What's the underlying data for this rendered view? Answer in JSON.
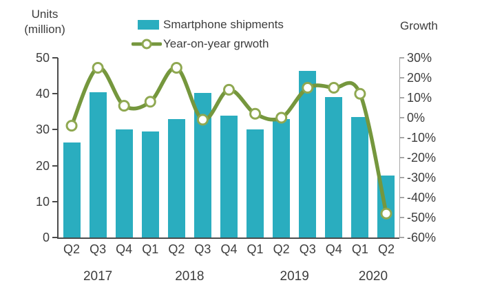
{
  "chart_data": {
    "type": "bar",
    "combo": "bar+line",
    "title": "",
    "categories": [
      "Q2",
      "Q3",
      "Q4",
      "Q1",
      "Q2",
      "Q3",
      "Q4",
      "Q1",
      "Q2",
      "Q3",
      "Q4",
      "Q1",
      "Q2"
    ],
    "year_groups": [
      {
        "label": "2017",
        "from": 0,
        "to": 2
      },
      {
        "label": "2018",
        "from": 3,
        "to": 6
      },
      {
        "label": "2019",
        "from": 7,
        "to": 10
      },
      {
        "label": "2020",
        "from": 11,
        "to": 12
      }
    ],
    "series": [
      {
        "name": "Smartphone shipments",
        "kind": "bar",
        "axis": "left",
        "values": [
          26.5,
          40.5,
          30,
          29.5,
          33,
          40.3,
          34,
          30,
          33,
          46.3,
          39,
          33.5,
          17.3
        ]
      },
      {
        "name": "Year-on-year grwoth",
        "kind": "line",
        "axis": "right",
        "unit": "%",
        "values": [
          -4,
          25,
          6,
          8,
          25,
          -1,
          14,
          2,
          0,
          15,
          15,
          12,
          -48
        ]
      }
    ],
    "left_axis": {
      "title_lines": [
        "Units",
        "(million)"
      ],
      "min": 0,
      "max": 50,
      "ticks": [
        0,
        10,
        20,
        30,
        40,
        50
      ]
    },
    "right_axis": {
      "title": "Growth",
      "min": -60,
      "max": 30,
      "tick_labels": [
        "30%",
        "20%",
        "10%",
        "0%",
        "-10%",
        "-20%",
        "-30%",
        "-40%",
        "-50%",
        "-60%"
      ]
    },
    "legend": [
      "Smartphone shipments",
      "Year-on-year grwoth"
    ],
    "legend_position": "top-center",
    "grid": false,
    "colors": {
      "bar": "#2aadbf",
      "line": "#75973d",
      "marker_ring": "#8fa851",
      "marker_fill": "#ffffff",
      "axis_dark": "#4a4a4a",
      "axis_light": "#a6a6a6",
      "text": "#3d3d3d"
    }
  }
}
